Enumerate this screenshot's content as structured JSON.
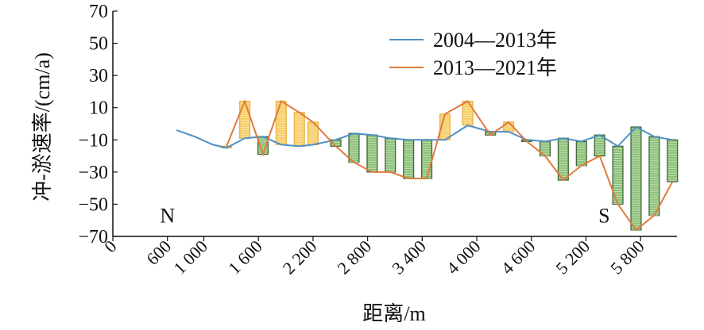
{
  "chart_data": {
    "type": "line",
    "xlabel": "距离/m",
    "ylabel": "冲-淤速率/(cm/a)",
    "xlim": [
      0,
      6200
    ],
    "ylim": [
      -70,
      70
    ],
    "y_ticks": [
      -70,
      -50,
      -30,
      -10,
      10,
      30,
      50,
      70
    ],
    "y_tick_labels": [
      "−70",
      "−50",
      "−30",
      "−10",
      "10",
      "30",
      "50",
      "70"
    ],
    "x_ticks": [
      0,
      600,
      1000,
      1600,
      2200,
      2800,
      3400,
      4000,
      4600,
      5200,
      5800
    ],
    "x_tick_labels": [
      "0",
      "600",
      "1 000",
      "1 600",
      "2 200",
      "2 800",
      "3 400",
      "4 000",
      "4 600",
      "5 200",
      "5 800"
    ],
    "legend_position": "top-right",
    "annotations": [
      {
        "text": "N",
        "x": 600,
        "y": -57
      },
      {
        "text": "S",
        "x": 5400,
        "y": -57
      }
    ],
    "colors": {
      "series_2004_2013": "#4e8fc4",
      "series_2013_2021": "#e07b3a",
      "increase_fill": "#f7cf6a",
      "decrease_fill": "#8cbf78",
      "decrease_stroke": "#3f6b3a"
    },
    "x": [
      700,
      900,
      1100,
      1250,
      1450,
      1650,
      1850,
      2050,
      2200,
      2450,
      2650,
      2850,
      3050,
      3250,
      3450,
      3650,
      3900,
      4150,
      4350,
      4550,
      4750,
      4950,
      5150,
      5350,
      5550,
      5750,
      5950,
      6150
    ],
    "series": [
      {
        "name": "2004—2013年",
        "values": [
          -4,
          -8,
          -13,
          -15,
          -9,
          -8,
          -13,
          -14,
          -13,
          -10,
          -6,
          -7,
          -9,
          -10,
          -10,
          -10,
          -1,
          -5,
          -5,
          -10,
          -11,
          -9,
          -11,
          -7,
          -14,
          -2,
          -8,
          -10
        ]
      },
      {
        "name": "2013—2021年",
        "values": [
          null,
          null,
          null,
          -14,
          14,
          -19,
          14,
          7,
          1,
          -14,
          -24,
          -30,
          -30,
          -34,
          -34,
          6,
          14,
          -7,
          1,
          -11,
          -20,
          -35,
          -26,
          -20,
          -50,
          -66,
          -57,
          -36
        ]
      }
    ]
  }
}
